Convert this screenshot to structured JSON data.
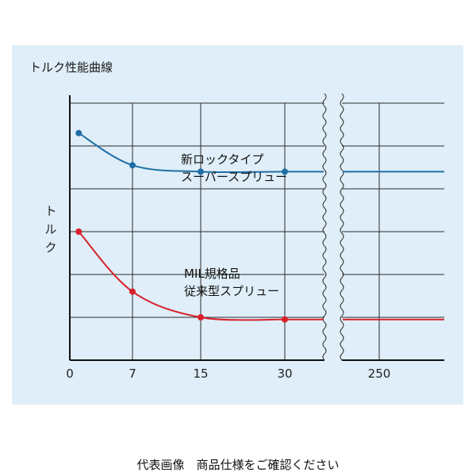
{
  "chart_data": {
    "type": "line",
    "title": "トルク性能曲線",
    "ylabel": "トルク",
    "xlabel": "",
    "x_ticks": [
      "0",
      "7",
      "15",
      "30",
      "250"
    ],
    "axis_break": "between 30 and 250",
    "grid": true,
    "y_tick_labels": false,
    "series": [
      {
        "name": "新ロックタイプ スーパースプリュー",
        "label_lines": [
          "新ロックタイプ",
          "スーパースプリュー"
        ],
        "color": "#1f6ea5",
        "points": [
          {
            "x": 1,
            "y": 5.3
          },
          {
            "x": 7,
            "y": 4.55
          },
          {
            "x": 15,
            "y": 4.4
          },
          {
            "x": 30,
            "y": 4.4
          }
        ],
        "tail": "flat to beyond 250"
      },
      {
        "name": "MIL規格品 従来型スプリュー",
        "label_lines": [
          "MIL規格品",
          "従来型スプリュー"
        ],
        "color": "#d8212b",
        "points": [
          {
            "x": 1,
            "y": 3.0
          },
          {
            "x": 7,
            "y": 1.6
          },
          {
            "x": 15,
            "y": 1.0
          },
          {
            "x": 30,
            "y": 0.95
          }
        ],
        "tail": "flat to beyond 250"
      }
    ]
  },
  "footer_text": "代表画像　商品仕様をご確認ください"
}
